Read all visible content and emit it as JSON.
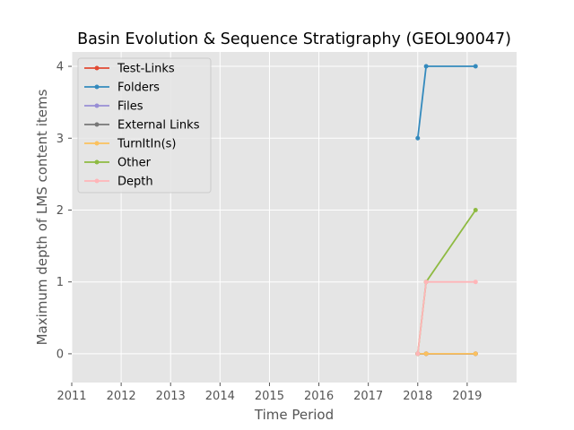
{
  "chart_data": {
    "type": "line",
    "title": "Basin Evolution & Sequence Stratigraphy (GEOL90047)",
    "xlabel": "Time Period",
    "ylabel": "Maximum depth of LMS content items",
    "x_ticks": [
      "2011",
      "2012",
      "2013",
      "2014",
      "2015",
      "2016",
      "2017",
      "2018",
      "2019"
    ],
    "y_ticks": [
      "0",
      "1",
      "2",
      "3",
      "4"
    ],
    "xlim": [
      2011,
      2020
    ],
    "ylim": [
      -0.4,
      4.2
    ],
    "grid": true,
    "legend_position": "upper-left",
    "series": [
      {
        "name": "Test-Links",
        "color": "#E24A33",
        "x": [
          2018.0,
          2018.17,
          2019.17
        ],
        "y": [
          0,
          0,
          0
        ]
      },
      {
        "name": "Folders",
        "color": "#348ABD",
        "x": [
          2018.0,
          2018.17,
          2019.17
        ],
        "y": [
          3,
          4,
          4
        ]
      },
      {
        "name": "Files",
        "color": "#988ED5",
        "x": [
          2018.0,
          2018.17,
          2019.17
        ],
        "y": [
          0,
          0,
          0
        ]
      },
      {
        "name": "External Links",
        "color": "#777777",
        "x": [
          2018.0,
          2018.17,
          2019.17
        ],
        "y": [
          0,
          0,
          0
        ]
      },
      {
        "name": "TurnItIn(s)",
        "color": "#FBC15E",
        "x": [
          2018.0,
          2018.17,
          2019.17
        ],
        "y": [
          0,
          0,
          0
        ]
      },
      {
        "name": "Other",
        "color": "#8EBA42",
        "x": [
          2018.0,
          2018.17,
          2019.17
        ],
        "y": [
          0,
          1,
          2
        ]
      },
      {
        "name": "Depth",
        "color": "#FFB5B8",
        "x": [
          2018.0,
          2018.17,
          2019.17
        ],
        "y": [
          0,
          1,
          1
        ]
      }
    ]
  }
}
